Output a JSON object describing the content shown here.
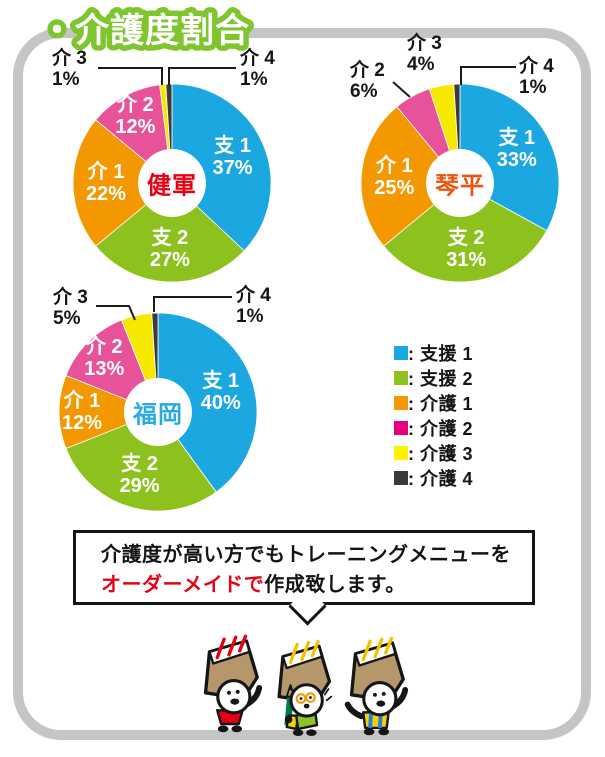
{
  "page_title": "・介護度割合",
  "theme": {
    "frame_gray": "#c5c5c5",
    "title_green": "#7ec52e",
    "text_black": "#151515",
    "highlight_red": "#e60012"
  },
  "chart_data": [
    {
      "type": "pie",
      "variant": "donut",
      "title": "健軍",
      "title_color": "#e60012",
      "unit": "%",
      "direction": "clockwise",
      "start_angle_deg": 0,
      "categories": [
        "支 1",
        "支 2",
        "介 1",
        "介 2",
        "介 3",
        "介 4"
      ],
      "values": [
        37,
        27,
        22,
        12,
        1,
        1
      ],
      "labels": [
        "37%",
        "27%",
        "22%",
        "12%",
        "1%",
        "1%"
      ],
      "colors": [
        "#1ba7e0",
        "#8dc21e",
        "#f39800",
        "#e85298",
        "#f5e900",
        "#3e3a39"
      ],
      "label_placement": {
        "inside": [
          0,
          1,
          2,
          3
        ],
        "outside": [
          4,
          5
        ]
      }
    },
    {
      "type": "pie",
      "variant": "donut",
      "title": "琴平",
      "title_color": "#ea5514",
      "unit": "%",
      "direction": "clockwise",
      "start_angle_deg": 0,
      "categories": [
        "支 1",
        "支 2",
        "介 1",
        "介 2",
        "介 3",
        "介 4"
      ],
      "values": [
        33,
        31,
        25,
        6,
        4,
        1
      ],
      "labels": [
        "33%",
        "31%",
        "25%",
        "6%",
        "4%",
        "1%"
      ],
      "colors": [
        "#1ba7e0",
        "#8dc21e",
        "#f39800",
        "#e85298",
        "#f5e900",
        "#3e3a39"
      ],
      "label_placement": {
        "inside": [
          0,
          1,
          2
        ],
        "outside": [
          3,
          4,
          5
        ]
      }
    },
    {
      "type": "pie",
      "variant": "donut",
      "title": "福岡",
      "title_color": "#29abe2",
      "unit": "%",
      "direction": "clockwise",
      "start_angle_deg": 0,
      "categories": [
        "支 1",
        "支 2",
        "介 1",
        "介 2",
        "介 3",
        "介 4"
      ],
      "values": [
        40,
        29,
        12,
        13,
        5,
        1
      ],
      "labels": [
        "40%",
        "29%",
        "12%",
        "13%",
        "5%",
        "1%"
      ],
      "colors": [
        "#1ba7e0",
        "#8dc21e",
        "#f39800",
        "#e85298",
        "#f5e900",
        "#3e3a39"
      ],
      "label_placement": {
        "inside": [
          0,
          1,
          2,
          3
        ],
        "outside": [
          4,
          5
        ]
      }
    }
  ],
  "legend": {
    "position": "right-middle",
    "items": [
      {
        "color": "#1ba7e0",
        "label": ": 支援 1"
      },
      {
        "color": "#8dc21e",
        "label": ": 支援 2"
      },
      {
        "color": "#f39800",
        "label": ": 介護 1"
      },
      {
        "color": "#e4007f",
        "label": ": 介護 2"
      },
      {
        "color": "#fff100",
        "label": ": 介護 3"
      },
      {
        "color": "#3e3a39",
        "label": ": 介護 4"
      }
    ]
  },
  "callout": {
    "line1": "介護度が高い方でもトレーニングメニューを",
    "line2_highlight": "オーダーメイドで",
    "line2_rest": "作成致します。",
    "highlight_color": "#e60012"
  },
  "mascots": [
    {
      "accent": "#e60012",
      "outfit": "#e60012"
    },
    {
      "accent": "#f0c400",
      "outfit": "#8fc31f"
    },
    {
      "accent": "#f0c400",
      "outfit": "#f2d500"
    }
  ]
}
